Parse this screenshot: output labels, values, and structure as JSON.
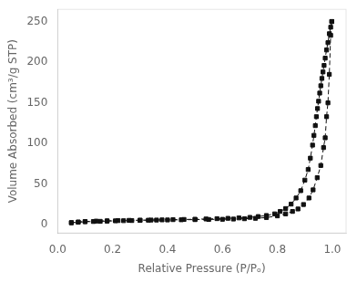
{
  "chart_data": {
    "type": "scatter",
    "xlabel": "Relative Pressure (P/Pₒ)",
    "ylabel": "Volume Absorbed (cm³/g STP)",
    "xlim": [
      0.0,
      1.05
    ],
    "ylim": [
      -10,
      265
    ],
    "xticks": [
      {
        "value": 0.0,
        "label": "0.0"
      },
      {
        "value": 0.2,
        "label": "0.2"
      },
      {
        "value": 0.4,
        "label": "0.4"
      },
      {
        "value": 0.6,
        "label": "0.6"
      },
      {
        "value": 0.8,
        "label": "0.8"
      },
      {
        "value": 1.0,
        "label": "1.0"
      }
    ],
    "yticks": [
      0,
      50,
      100,
      150,
      200,
      250
    ],
    "grid": false,
    "series": [
      {
        "color": "#111111",
        "marker": "square",
        "line_style": "dashed",
        "x": [
          0.05,
          0.075,
          0.1,
          0.13,
          0.155,
          0.18,
          0.21,
          0.24,
          0.27,
          0.3,
          0.33,
          0.36,
          0.4,
          0.45,
          0.5,
          0.55,
          0.6,
          0.64,
          0.68,
          0.72,
          0.76,
          0.8,
          0.83,
          0.855,
          0.875,
          0.895,
          0.915,
          0.93,
          0.945,
          0.958,
          0.968,
          0.974,
          0.979,
          0.984,
          0.989,
          0.994,
          0.998
        ],
        "values": [
          2.5,
          3.2,
          3.8,
          4.1,
          4.3,
          4.6,
          4.9,
          5.1,
          5.3,
          5.5,
          5.7,
          5.9,
          6.0,
          6.2,
          6.4,
          6.6,
          6.8,
          7.1,
          7.5,
          8.0,
          9.0,
          11.0,
          13.5,
          16.5,
          19.5,
          25.0,
          33.0,
          43.0,
          58.0,
          73.0,
          95.0,
          107.0,
          133.0,
          150.0,
          185.0,
          233.0,
          250.0
        ]
      },
      {
        "color": "#111111",
        "marker": "square",
        "line_style": "dashed",
        "x": [
          0.998,
          0.994,
          0.989,
          0.984,
          0.979,
          0.974,
          0.97,
          0.966,
          0.962,
          0.958,
          0.954,
          0.95,
          0.946,
          0.942,
          0.938,
          0.933,
          0.928,
          0.92,
          0.912,
          0.9,
          0.885,
          0.868,
          0.85,
          0.83,
          0.81,
          0.79,
          0.76,
          0.73,
          0.7,
          0.66,
          0.62,
          0.58,
          0.54,
          0.5,
          0.46,
          0.42,
          0.38,
          0.34,
          0.3,
          0.26,
          0.22,
          0.18,
          0.14,
          0.1,
          0.075,
          0.05
        ],
        "values": [
          250.0,
          243.0,
          235.0,
          224.0,
          215.0,
          205.0,
          196.0,
          188.0,
          180.0,
          171.0,
          162.0,
          152.0,
          143.0,
          133.0,
          122.0,
          110.0,
          98.0,
          82.0,
          68.0,
          55.0,
          42.0,
          33.0,
          25.5,
          20.0,
          16.5,
          13.5,
          11.5,
          10.2,
          9.2,
          8.5,
          8.0,
          7.6,
          7.2,
          6.9,
          6.6,
          6.4,
          6.1,
          5.9,
          5.7,
          5.5,
          5.2,
          4.9,
          4.6,
          4.1,
          3.5,
          2.8
        ]
      }
    ]
  }
}
